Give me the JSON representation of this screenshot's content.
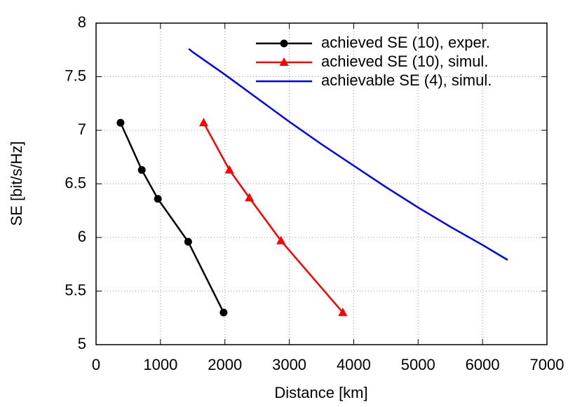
{
  "chart_data": {
    "type": "line",
    "x_label": "Distance [km]",
    "y_label": "SE [bit/s/Hz]",
    "xlim": [
      0,
      7000
    ],
    "xticks": [
      0,
      1000,
      2000,
      3000,
      4000,
      5000,
      6000,
      7000
    ],
    "ylim": [
      5,
      8
    ],
    "yticks": [
      5,
      5.5,
      6,
      6.5,
      7,
      7.5,
      8
    ],
    "grid": true,
    "legend": "top-right",
    "series": [
      {
        "name": "achieved SE (10), exper.",
        "color": "#000000",
        "marker": "circle",
        "x": [
          380,
          710,
          960,
          1430,
          1980
        ],
        "values": [
          7.07,
          6.63,
          6.36,
          5.96,
          5.3
        ]
      },
      {
        "name": "achieved SE (10), simul.",
        "color": "#ff0000",
        "marker": "triangle",
        "x": [
          1670,
          2070,
          2380,
          2870,
          3830
        ],
        "values": [
          7.07,
          6.63,
          6.37,
          5.97,
          5.3
        ]
      },
      {
        "name": "achievable SE (4), simul.",
        "color": "#0000ff",
        "x": [
          1440,
          1500,
          2000,
          2500,
          3000,
          3500,
          4000,
          4500,
          5000,
          5500,
          6000,
          6390
        ],
        "values": [
          7.76,
          7.73,
          7.52,
          7.3,
          7.08,
          6.87,
          6.67,
          6.47,
          6.28,
          6.1,
          5.93,
          5.79
        ]
      }
    ]
  }
}
